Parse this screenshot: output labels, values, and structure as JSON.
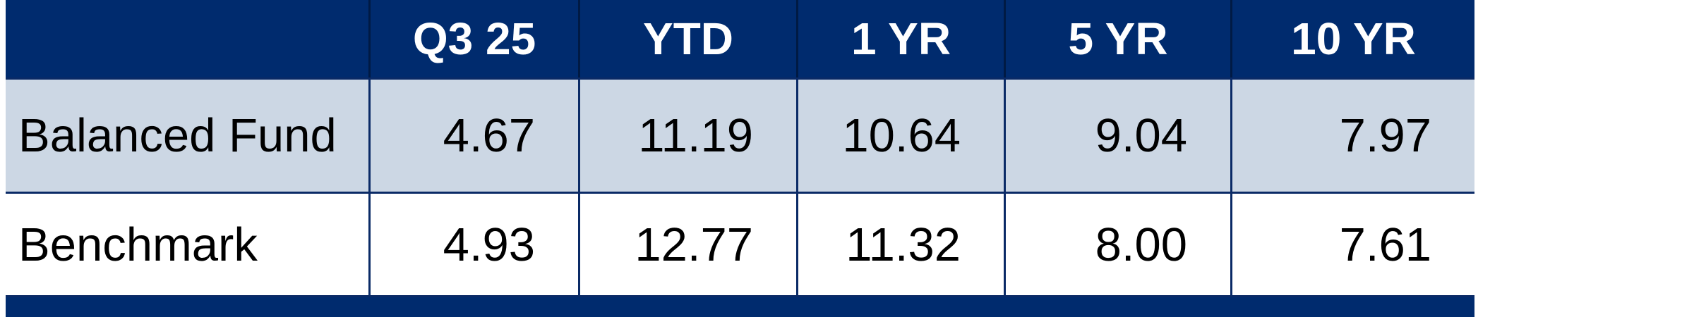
{
  "table": {
    "header": [
      "Q3 25",
      "YTD",
      "1 YR",
      "5 YR",
      "10 YR"
    ],
    "rows": [
      [
        "Balanced Fund",
        "4.67",
        "11.19",
        "10.64",
        "9.04",
        "7.97"
      ],
      [
        "Benchmark",
        "4.93",
        "12.77",
        "11.32",
        "8.00",
        "7.61"
      ]
    ]
  }
}
